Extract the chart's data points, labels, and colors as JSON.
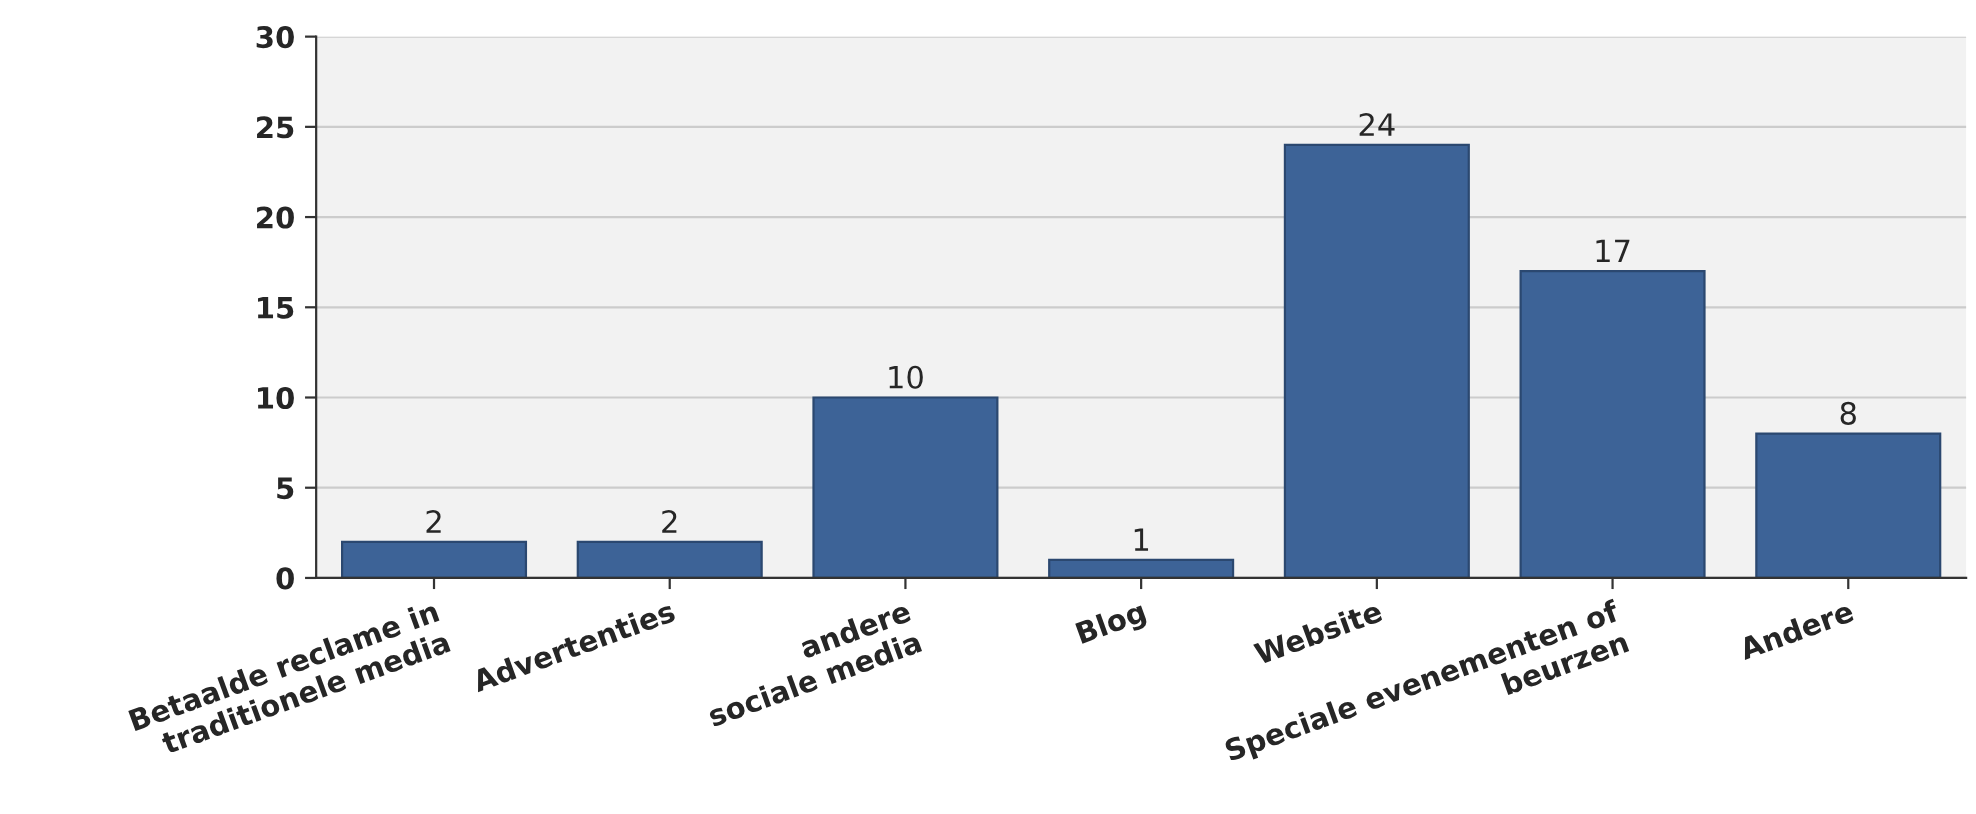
{
  "chart_data": {
    "type": "bar",
    "categories": [
      "Betaalde reclame in\ntraditionele media",
      "Advertenties",
      "andere\nsociale media",
      "Blog",
      "Website",
      "Speciale evenementen of\nbeurzen",
      "Andere"
    ],
    "values": [
      2,
      2,
      10,
      1,
      24,
      17,
      8
    ],
    "color": "#3d6397",
    "ylim": [
      0,
      30
    ],
    "yticks": [
      0,
      5,
      10,
      15,
      20,
      25,
      30
    ],
    "grid": "y",
    "data_labels": true
  }
}
